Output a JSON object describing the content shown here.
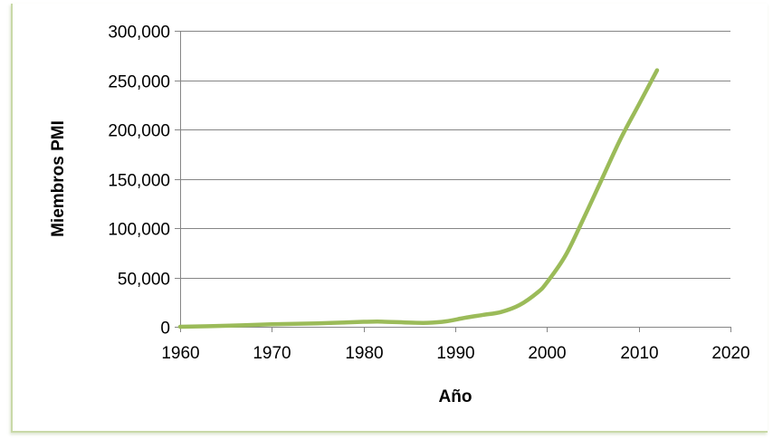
{
  "chart_data": {
    "type": "line",
    "xlabel": "Año",
    "ylabel": "Miembros PMI",
    "xlim": [
      1960,
      2020
    ],
    "ylim": [
      0,
      300000
    ],
    "x_ticks": [
      1960,
      1970,
      1980,
      1990,
      2000,
      2010,
      2020
    ],
    "y_ticks": [
      0,
      50000,
      100000,
      150000,
      200000,
      250000,
      300000
    ],
    "x_tick_labels": [
      "1960",
      "1970",
      "1980",
      "1990",
      "2000",
      "2010",
      "2020"
    ],
    "y_tick_labels": [
      "0",
      "50,000",
      "100,000",
      "150,000",
      "200,000",
      "250,000",
      "300,000"
    ],
    "grid": "horizontal",
    "legend": "none",
    "colors": {
      "series": "#9bbb59",
      "grid": "#868686",
      "axis": "#868686",
      "frame": "#c9d9a8"
    },
    "series": [
      {
        "x": [
          1960,
          1965,
          1970,
          1975,
          1980,
          1982,
          1985,
          1987,
          1989,
          1991,
          1993,
          1995,
          1997,
          1999,
          2000,
          2002,
          2004,
          2006,
          2008,
          2010,
          2012
        ],
        "values": [
          0,
          1000,
          2500,
          3500,
          5000,
          5200,
          4200,
          4000,
          5500,
          9000,
          12000,
          15000,
          22000,
          35000,
          45000,
          72000,
          110000,
          150000,
          190000,
          225000,
          260000
        ]
      }
    ]
  }
}
